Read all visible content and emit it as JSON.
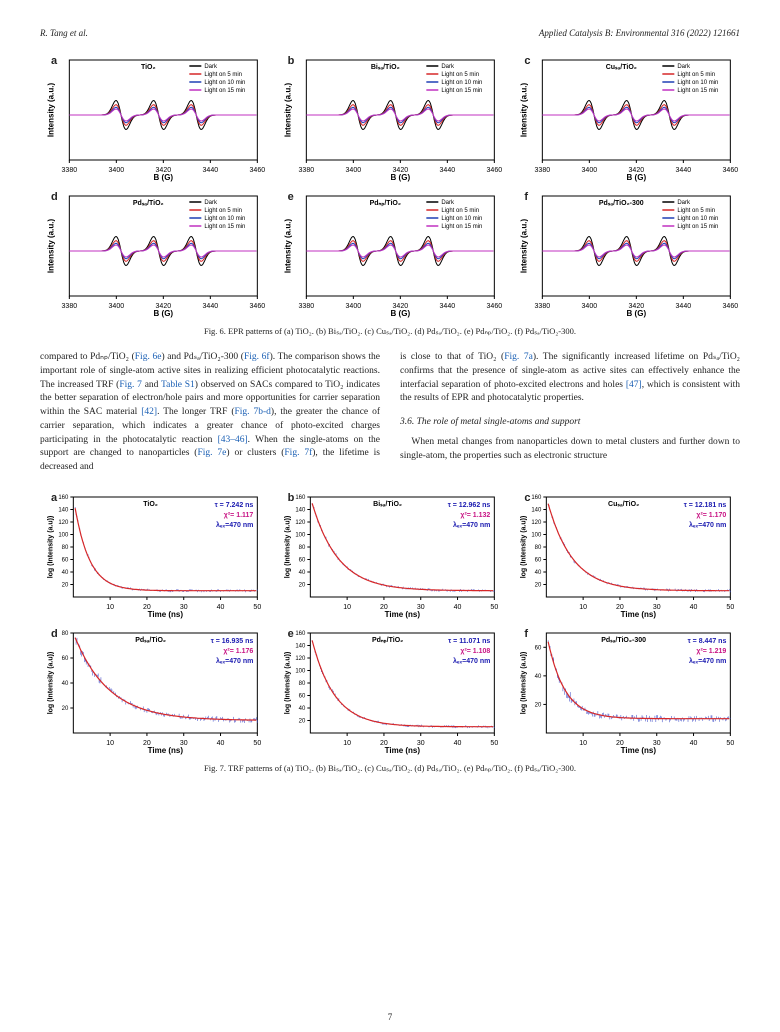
{
  "header": {
    "left": "R. Tang et al.",
    "right": "Applied Catalysis B: Environmental 316 (2022) 121661"
  },
  "fig6": {
    "panels": [
      {
        "label": "a",
        "title": "TiO₂"
      },
      {
        "label": "b",
        "title": "Biₛₐ/TiO₂"
      },
      {
        "label": "c",
        "title": "Cuₛₐ/TiO₂"
      },
      {
        "label": "d",
        "title": "Pdₛₐ/TiO₂"
      },
      {
        "label": "e",
        "title": "Pdₙₚ/TiO₂"
      },
      {
        "label": "f",
        "title": "Pdₛₐ/TiO₂-300"
      }
    ],
    "legend": [
      "Dark",
      "Light on 5 min",
      "Light on 10 min",
      "Light on 15 min"
    ],
    "legend_colors": [
      "#000000",
      "#d62728",
      "#1f3fb4",
      "#c030c0"
    ],
    "xlabel": "B (G)",
    "ylabel": "Intensity (a.u.)",
    "xlim": [
      3380,
      3460
    ],
    "xticks": [
      3380,
      3400,
      3420,
      3440,
      3460
    ],
    "peak_centers": [
      3402,
      3418,
      3434
    ],
    "caption": "Fig. 6. EPR patterns of (a) TiO₂. (b) Biₛₐ/TiO₂. (c) Cuₛₐ/TiO₂. (d) Pdₛₐ/TiO₂. (e) Pdₙₚ/TiO₂. (f) Pdₛₐ/TiO₂-300."
  },
  "fig7": {
    "panels": [
      {
        "label": "a",
        "title": "TiO₂",
        "tau": "τ = 7.242 ns",
        "chi": "χ²= 1.117"
      },
      {
        "label": "b",
        "title": "Biₛₐ/TiO₂",
        "tau": "τ = 12.962 ns",
        "chi": "χ²= 1.132"
      },
      {
        "label": "c",
        "title": "Cuₛₐ/TiO₂",
        "tau": "τ = 12.181 ns",
        "chi": "χ²= 1.170"
      },
      {
        "label": "d",
        "title": "Pdₛₐ/TiO₂",
        "tau": "τ = 16.935 ns",
        "chi": "χ²= 1.176"
      },
      {
        "label": "e",
        "title": "Pdₙₚ/TiO₂",
        "tau": "τ = 11.071 ns",
        "chi": "χ²= 1.108"
      },
      {
        "label": "f",
        "title": "Pdₛₐ/TiO₂-300",
        "tau": "τ = 8.447 ns",
        "chi": "χ²= 1.219"
      }
    ],
    "lambda": "λₑₓ=470 nm",
    "xlabel": "Time (ns)",
    "ylabel": "log (Intensity (a.u))",
    "xlim": [
      0,
      50
    ],
    "xticks": [
      10,
      20,
      30,
      40,
      50
    ],
    "yticks_a": [
      20,
      40,
      60,
      80,
      100,
      120,
      140,
      160
    ],
    "data_color": "#2030c0",
    "fit_color": "#d62728",
    "caption": "Fig. 7. TRF patterns of (a) TiO₂. (b) Biₛₐ/TiO₂. (c) Cuₛₐ/TiO₂. (d) Pdₛₐ/TiO₂. (e) Pdₙₚ/TiO₂. (f) Pdₛₐ/TiO₂-300."
  },
  "body": {
    "col_left": "compared to Pdₙₚ/TiO₂ (Fig. 6e) and Pdₛₐ/TiO₂-300 (Fig. 6f). The comparison shows the important role of single-atom active sites in realizing efficient photocatalytic reactions. The increased TRF (Fig. 7 and Table S1) observed on SACs compared to TiO₂ indicates the better separation of electron/hole pairs and more opportunities for carrier separation within the SAC material [42]. The longer TRF (Fig. 7b-d), the greater the chance of carrier separation, which indicates a greater chance of photo-excited charges participating in the photocatalytic reaction [43–46]. When the single-atoms on the support are changed to nanoparticles (Fig. 7e) or clusters (Fig. 7f), the lifetime is decreased and",
    "col_right_top": "is close to that of TiO₂ (Fig. 7a). The significantly increased lifetime on Pdₛₐ/TiO₂ confirms that the presence of single-atom as active sites can effectively enhance the interfacial separation of photo-excited electrons and holes [47], which is consistent with the results of EPR and photocatalytic properties.",
    "sect_head": "3.6.  The role of metal single-atoms and support",
    "col_right_bottom": "When metal changes from nanoparticles down to metal clusters and further down to single-atom, the properties such as electronic structure"
  },
  "pagenum": "7",
  "style": {
    "tau_color": "#1a1ab0",
    "chi_color": "#c81484",
    "lambda_color": "#1a1ab0",
    "axis_font": "Arial",
    "title_fontsize": 8
  }
}
